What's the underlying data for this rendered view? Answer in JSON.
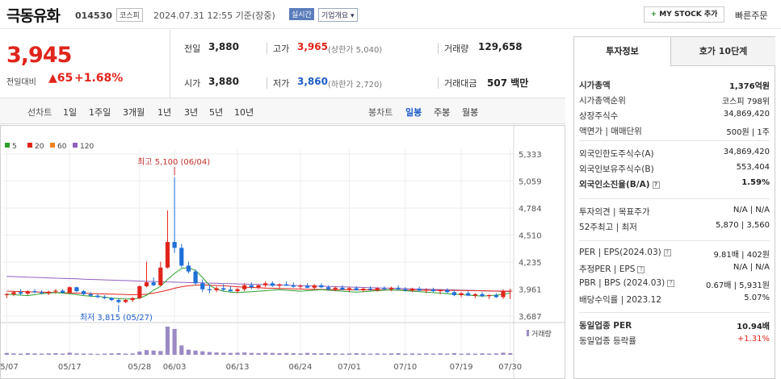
{
  "header": {
    "stock_name": "극동유화",
    "stock_code": "014530",
    "market": "코스피",
    "date_text": "2024.07.31 12:55 기준(장중)",
    "realtime": "실시간",
    "company_info": "기업개요",
    "mystock": "MY STOCK 추가",
    "quick_order": "빠른주문"
  },
  "price": {
    "current": "3,945",
    "diff_label": "전일대비",
    "diff": "▲65",
    "rate": "+1.68%"
  },
  "quote": {
    "prev_label": "전일",
    "prev": "3,880",
    "high_label": "고가",
    "high": "3,965",
    "upper_limit": "(상한가 5,040)",
    "volume_label": "거래량",
    "volume": "129,658",
    "open_label": "시가",
    "open": "3,880",
    "low_label": "저가",
    "low": "3,860",
    "lower_limit": "(하한가 2,720)",
    "amount_label": "거래대금",
    "amount": "507 백만"
  },
  "periods": {
    "line_chart": "선차트",
    "items": [
      "1일",
      "1주일",
      "3개월",
      "1년",
      "3년",
      "5년",
      "10년"
    ],
    "candle_chart": "봉차트",
    "candle_items": [
      "일봉",
      "주봉",
      "월봉"
    ],
    "active_candle": "일봉"
  },
  "chart_data": {
    "type": "candlestick",
    "legend": [
      {
        "name": "5",
        "color": "#2ca02c"
      },
      {
        "name": "20",
        "color": "#e0241b"
      },
      {
        "name": "60",
        "color": "#f08020"
      },
      {
        "name": "120",
        "color": "#9060c0"
      }
    ],
    "y_ticks": [
      "5,333",
      "5,059",
      "4,784",
      "4,510",
      "4,235",
      "3,961",
      "3,687"
    ],
    "y_tick_values": [
      5333,
      5059,
      4784,
      4510,
      4235,
      3961,
      3687
    ],
    "x_labels": [
      "05/07",
      "05/17",
      "05/28",
      "06/03",
      "06/13",
      "06/24",
      "07/01",
      "07/10",
      "07/19",
      "07/30"
    ],
    "x_label_index": [
      0,
      9,
      19,
      24,
      33,
      42,
      49,
      57,
      65,
      72
    ],
    "max_annotation": "최고 5,100 (06/04)",
    "min_annotation": "최저 3,815 (05/27)",
    "volume_label": "거래량",
    "ma120": [
      4090,
      4088,
      4085,
      4082,
      4080,
      4078,
      4075,
      4072,
      4070,
      4068,
      4065,
      4062,
      4060,
      4058,
      4055,
      4052,
      4050,
      4048,
      4045,
      4042,
      4040,
      4038,
      4036,
      4034,
      4032,
      4030,
      4028,
      4026,
      4024,
      4022,
      4020,
      4018,
      4016,
      4014,
      4012,
      4010,
      4008,
      4006,
      4004,
      4002,
      4000,
      3998,
      3996,
      3994,
      3992,
      3990,
      3988,
      3986,
      3984,
      3982,
      3980,
      3978,
      3976,
      3974,
      3972,
      3970,
      3968,
      3966,
      3964,
      3962,
      3960,
      3958,
      3956,
      3954,
      3952,
      3950,
      3948,
      3946,
      3944,
      3942,
      3940,
      3938,
      3936
    ],
    "ma20": [
      3940,
      3938,
      3936,
      3934,
      3932,
      3930,
      3928,
      3926,
      3924,
      3922,
      3920,
      3918,
      3916,
      3914,
      3912,
      3910,
      3908,
      3906,
      3904,
      3905,
      3910,
      3920,
      3935,
      3950,
      3970,
      3985,
      3995,
      4000,
      4005,
      4000,
      3998,
      3995,
      3990,
      3985,
      3980,
      3978,
      3975,
      3972,
      3970,
      3968,
      3966,
      3964,
      3962,
      3960,
      3958,
      3957,
      3956,
      3955,
      3955,
      3955,
      3954,
      3954,
      3953,
      3953,
      3952,
      3952,
      3951,
      3951,
      3950,
      3950,
      3950,
      3949,
      3949,
      3948,
      3948,
      3947,
      3946,
      3945,
      3944,
      3943,
      3942,
      3941,
      3940
    ],
    "ma5": [
      3910,
      3905,
      3900,
      3895,
      3905,
      3915,
      3920,
      3925,
      3920,
      3915,
      3905,
      3895,
      3890,
      3885,
      3880,
      3870,
      3865,
      3860,
      3862,
      3870,
      3900,
      3950,
      3990,
      4060,
      4120,
      4170,
      4180,
      4150,
      4080,
      4000,
      3960,
      3940,
      3930,
      3925,
      3930,
      3935,
      3940,
      3945,
      3950,
      3955,
      3950,
      3945,
      3940,
      3945,
      3950,
      3955,
      3950,
      3945,
      3940,
      3935,
      3930,
      3935,
      3940,
      3945,
      3950,
      3955,
      3950,
      3945,
      3940,
      3935,
      3930,
      3925,
      3920,
      3915,
      3910,
      3905,
      3900,
      3895,
      3890,
      3895,
      3900,
      3910,
      3920
    ],
    "candles": [
      [
        3900,
        3920,
        3870,
        3910
      ],
      [
        3910,
        3940,
        3890,
        3930
      ],
      [
        3930,
        3960,
        3900,
        3915
      ],
      [
        3915,
        3950,
        3900,
        3940
      ],
      [
        3940,
        3960,
        3920,
        3930
      ],
      [
        3930,
        3950,
        3910,
        3920
      ],
      [
        3920,
        3945,
        3900,
        3935
      ],
      [
        3935,
        3960,
        3915,
        3945
      ],
      [
        3945,
        3960,
        3920,
        3925
      ],
      [
        3925,
        3990,
        3920,
        3980
      ],
      [
        3980,
        3985,
        3930,
        3940
      ],
      [
        3940,
        3950,
        3900,
        3910
      ],
      [
        3910,
        3930,
        3880,
        3895
      ],
      [
        3895,
        3910,
        3870,
        3880
      ],
      [
        3880,
        3900,
        3860,
        3870
      ],
      [
        3870,
        3880,
        3840,
        3850
      ],
      [
        3850,
        3870,
        3815,
        3830
      ],
      [
        3830,
        3860,
        3820,
        3850
      ],
      [
        3850,
        3880,
        3830,
        3870
      ],
      [
        3870,
        4000,
        3860,
        3990
      ],
      [
        3990,
        4240,
        3980,
        4030
      ],
      [
        4030,
        4080,
        3990,
        4000
      ],
      [
        4000,
        4240,
        3990,
        4180
      ],
      [
        4180,
        4760,
        4170,
        4440
      ],
      [
        4440,
        5100,
        4330,
        4380
      ],
      [
        4380,
        4420,
        4180,
        4200
      ],
      [
        4200,
        4240,
        4120,
        4140
      ],
      [
        4140,
        4160,
        4000,
        4020
      ],
      [
        4020,
        4060,
        3930,
        3960
      ],
      [
        3960,
        4010,
        3920,
        3950
      ],
      [
        3950,
        3990,
        3930,
        3970
      ],
      [
        3970,
        4010,
        3940,
        3955
      ],
      [
        3955,
        3990,
        3930,
        3940
      ],
      [
        3940,
        3975,
        3920,
        3960
      ],
      [
        3960,
        4020,
        3940,
        4000
      ],
      [
        4000,
        4030,
        3960,
        3980
      ],
      [
        3980,
        4010,
        3960,
        4000
      ],
      [
        4000,
        4040,
        3980,
        4020
      ],
      [
        4020,
        4040,
        3985,
        3995
      ],
      [
        3995,
        4020,
        3970,
        4010
      ],
      [
        4010,
        4040,
        3990,
        4000
      ],
      [
        4000,
        4030,
        3975,
        3985
      ],
      [
        3985,
        4010,
        3960,
        3995
      ],
      [
        3995,
        4020,
        3970,
        3975
      ],
      [
        3975,
        4010,
        3960,
        4000
      ],
      [
        4000,
        4020,
        3970,
        3980
      ],
      [
        3980,
        4000,
        3950,
        3960
      ],
      [
        3960,
        3990,
        3940,
        3975
      ],
      [
        3975,
        4000,
        3950,
        3955
      ],
      [
        3955,
        3985,
        3930,
        3970
      ],
      [
        3970,
        3990,
        3945,
        3950
      ],
      [
        3950,
        3980,
        3930,
        3965
      ],
      [
        3965,
        3990,
        3945,
        3955
      ],
      [
        3955,
        3980,
        3935,
        3970
      ],
      [
        3970,
        3990,
        3950,
        3960
      ],
      [
        3960,
        3985,
        3940,
        3975
      ],
      [
        3975,
        4000,
        3950,
        3960
      ],
      [
        3960,
        3980,
        3935,
        3950
      ],
      [
        3950,
        3975,
        3930,
        3965
      ],
      [
        3965,
        3985,
        3940,
        3945
      ],
      [
        3945,
        3970,
        3920,
        3955
      ],
      [
        3955,
        3975,
        3930,
        3940
      ],
      [
        3940,
        3960,
        3910,
        3950
      ],
      [
        3950,
        3970,
        3920,
        3930
      ],
      [
        3930,
        3950,
        3890,
        3900
      ],
      [
        3900,
        3930,
        3880,
        3920
      ],
      [
        3920,
        3940,
        3890,
        3895
      ],
      [
        3895,
        3920,
        3870,
        3910
      ],
      [
        3910,
        3930,
        3880,
        3890
      ],
      [
        3890,
        3910,
        3860,
        3900
      ],
      [
        3900,
        3920,
        3870,
        3880
      ],
      [
        3880,
        3960,
        3860,
        3945
      ],
      [
        3945,
        3965,
        3860,
        3945
      ]
    ],
    "volumes": [
      8,
      6,
      5,
      7,
      6,
      5,
      6,
      7,
      5,
      9,
      6,
      5,
      5,
      4,
      5,
      6,
      7,
      5,
      6,
      14,
      20,
      18,
      16,
      120,
      110,
      40,
      22,
      18,
      15,
      12,
      10,
      9,
      8,
      9,
      10,
      8,
      7,
      9,
      8,
      7,
      8,
      7,
      6,
      8,
      7,
      6,
      7,
      6,
      5,
      6,
      7,
      6,
      5,
      6,
      5,
      6,
      7,
      5,
      6,
      5,
      6,
      5,
      6,
      5,
      7,
      5,
      6,
      5,
      6,
      5,
      6,
      9,
      7
    ]
  },
  "right_panel": {
    "tab_invest": "투자정보",
    "tab_hoga": "호가 10단계",
    "s1": [
      {
        "l": "시가총액",
        "r": "1,376억원",
        "bold": true
      },
      {
        "l": "시가총액순위",
        "r": "코스피 798위"
      },
      {
        "l": "상장주식수",
        "r": "34,869,420"
      },
      {
        "l": "액면가 | 매매단위",
        "r": "500원 | 1주"
      }
    ],
    "s2": [
      {
        "l": "외국인한도주식수(A)",
        "r": "34,869,420"
      },
      {
        "l": "외국인보유주식수(B)",
        "r": "553,404"
      },
      {
        "l": "외국인소진율(B/A)",
        "r": "1.59%",
        "bold": true
      }
    ],
    "s3": [
      {
        "l": "투자의견 | 목표주가",
        "r": "N/A | N/A"
      },
      {
        "l": "52주최고 | 최저",
        "r": "5,870 | 3,560"
      }
    ],
    "s4": [
      {
        "l": "PER | EPS(2024.03)",
        "r": "9.81배 | 402원"
      },
      {
        "l": "추정PER | EPS",
        "r": "N/A | N/A"
      },
      {
        "l": "PBR | BPS (2024.03)",
        "r": "0.67배 | 5,931원"
      },
      {
        "l": "배당수익률 | 2023.12",
        "r": "5.07%"
      }
    ],
    "s5": [
      {
        "l": "동일업종 PER",
        "r": "10.94배",
        "bold": true
      },
      {
        "l": "동일업종 등락률",
        "r": "+1.31%",
        "red": true
      }
    ]
  }
}
